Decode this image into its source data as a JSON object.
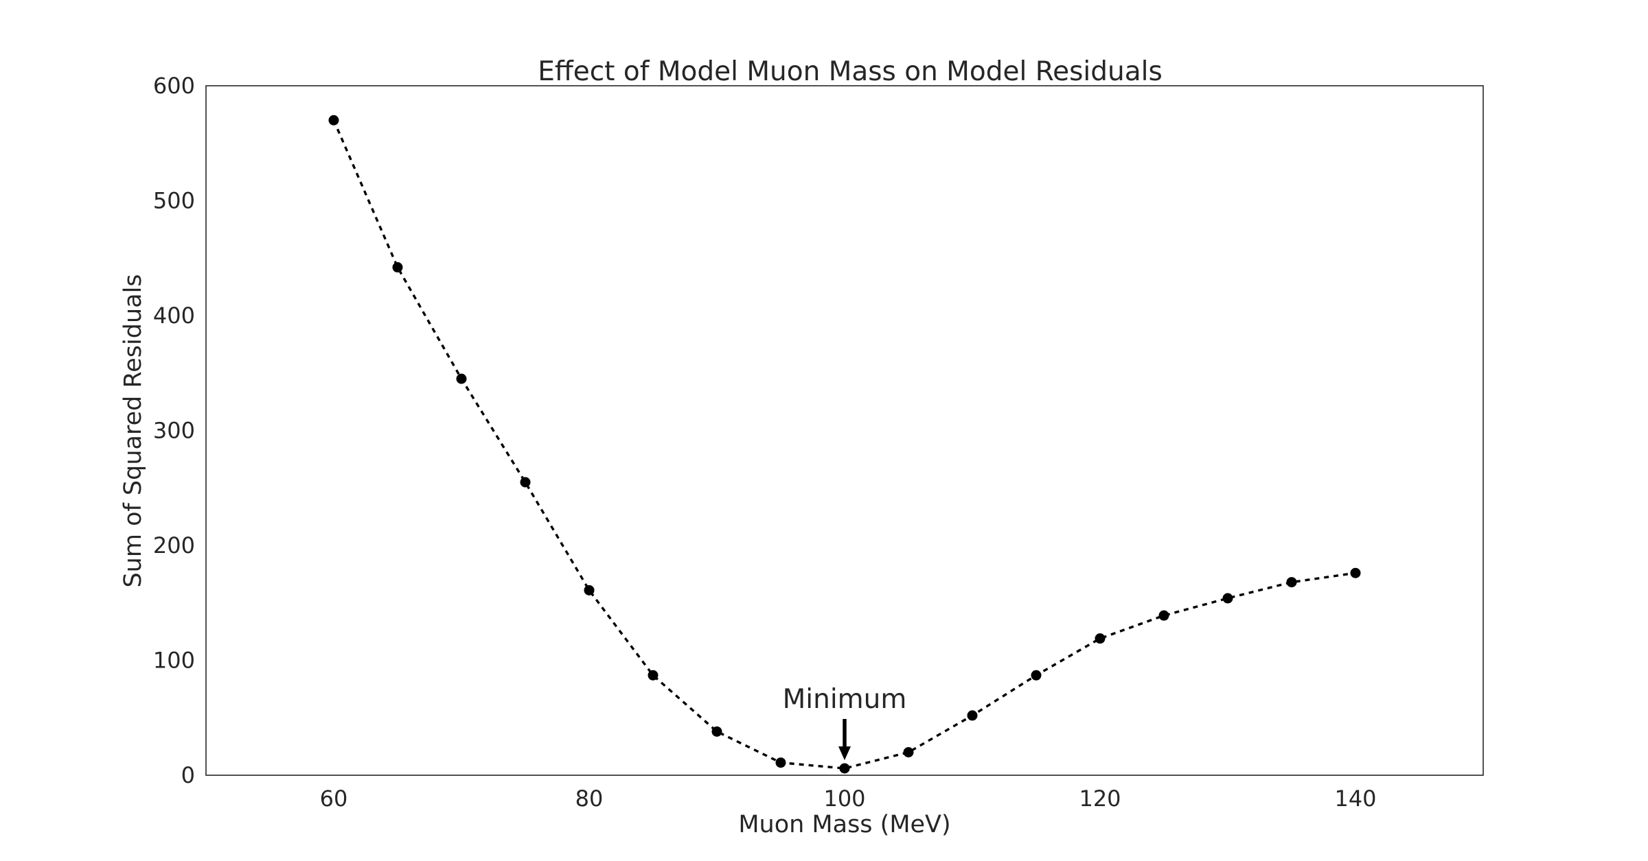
{
  "chart_data": {
    "type": "line",
    "title": "Effect of Model Muon Mass on Model Residuals",
    "xlabel": "Muon Mass (MeV)",
    "ylabel": "Sum of Squared Residuals",
    "xlim": [
      50,
      150
    ],
    "ylim": [
      0,
      600
    ],
    "xticks": [
      60,
      80,
      100,
      120,
      140
    ],
    "yticks": [
      0,
      100,
      200,
      300,
      400,
      500,
      600
    ],
    "grid": false,
    "line_style": "dashed",
    "marker": "circle",
    "color": "#000000",
    "series": [
      {
        "x": [
          60,
          65,
          70,
          75,
          80,
          85,
          90,
          95,
          100,
          105,
          110,
          115,
          120,
          125,
          130,
          135,
          140
        ],
        "y": [
          570,
          442,
          345,
          255,
          161,
          87,
          38,
          11,
          6,
          20,
          52,
          87,
          119,
          139,
          154,
          168,
          176
        ]
      }
    ],
    "annotations": [
      {
        "text": "Minimum",
        "x": 100,
        "y": 6,
        "arrow": "down"
      }
    ]
  }
}
